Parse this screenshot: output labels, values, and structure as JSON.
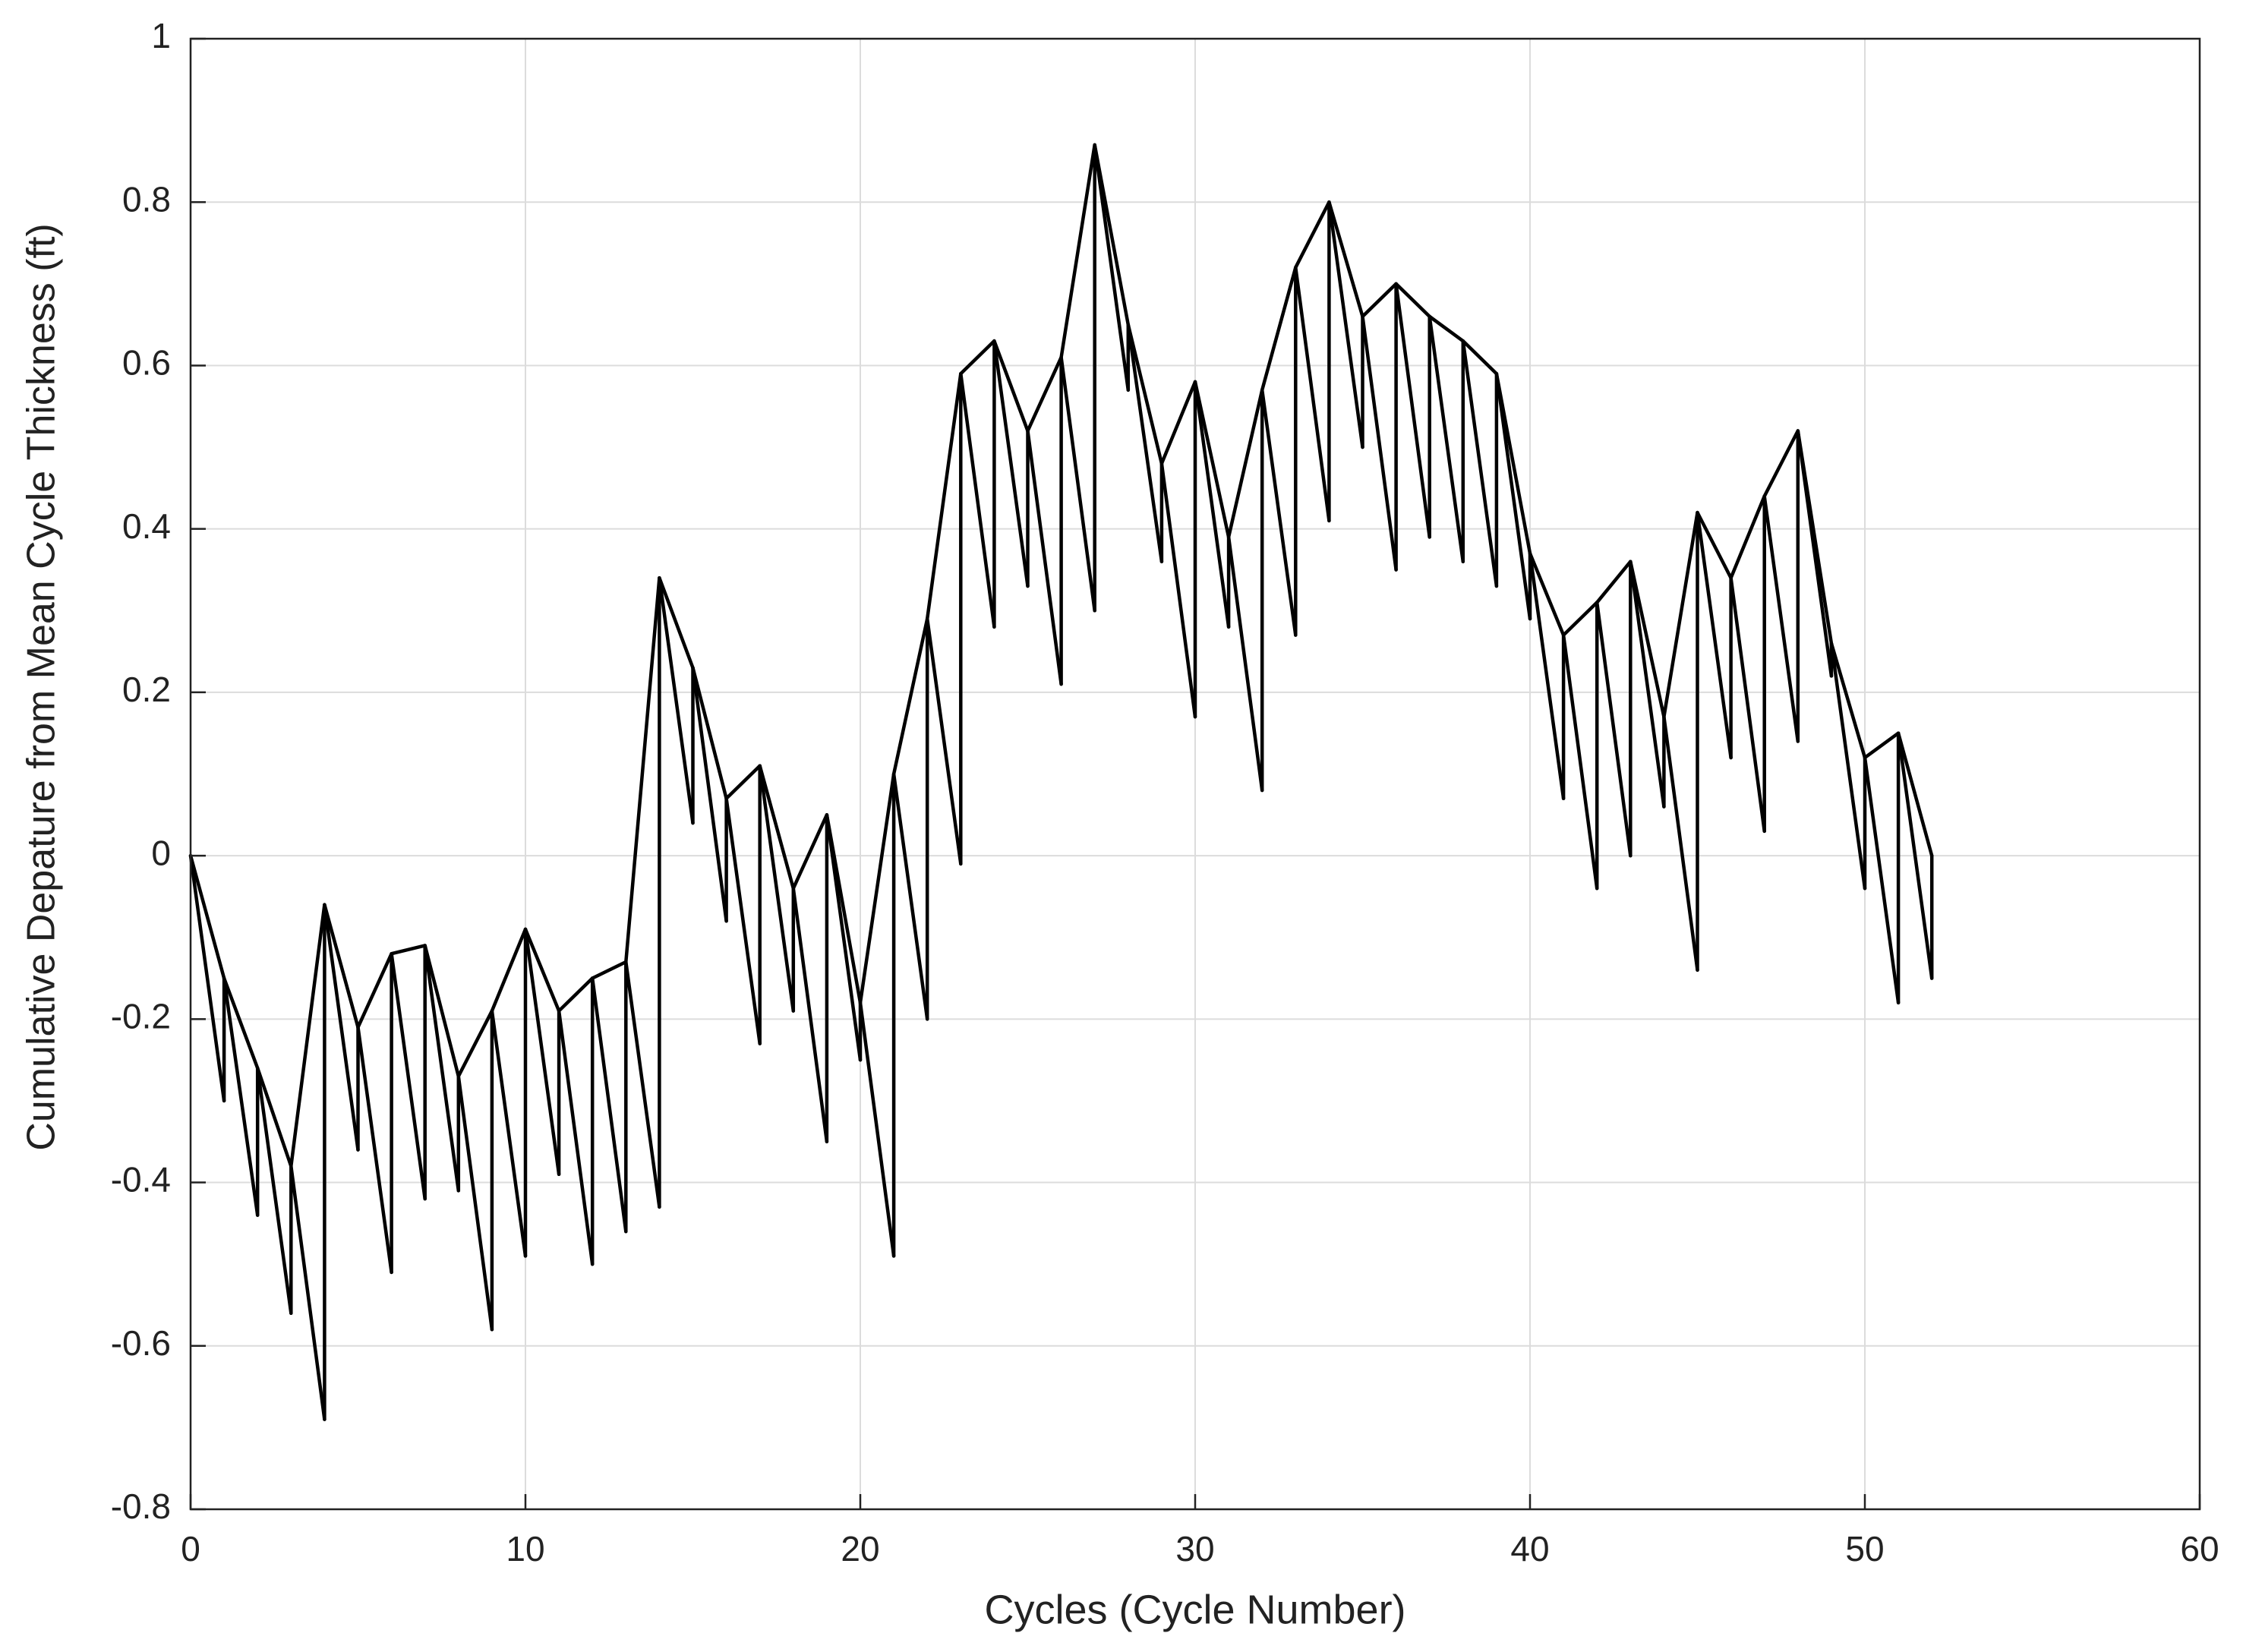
{
  "chart_data": {
    "type": "fischer",
    "xlabel": "Cycles (Cycle Number)",
    "ylabel": "Cumulative Depature from Mean Cycle Thickness (ft)",
    "x": [
      0,
      1,
      2,
      3,
      4,
      5,
      6,
      7,
      8,
      9,
      10,
      11,
      12,
      13,
      14,
      15,
      16,
      17,
      18,
      19,
      20,
      21,
      22,
      23,
      24,
      25,
      26,
      27,
      28,
      29,
      30,
      31,
      32,
      33,
      34,
      35,
      36,
      37,
      38,
      39,
      40,
      41,
      42,
      43,
      44,
      45,
      46,
      47,
      48,
      49,
      50,
      51,
      52
    ],
    "series": [
      {
        "color": "#000000",
        "values": [
          0,
          -0.15,
          -0.26,
          -0.38,
          -0.06,
          -0.21,
          -0.12,
          -0.11,
          -0.27,
          -0.19,
          -0.09,
          -0.19,
          -0.15,
          -0.13,
          0.34,
          0.23,
          0.07,
          0.11,
          -0.04,
          0.05,
          -0.18,
          0.1,
          0.29,
          0.59,
          0.63,
          0.52,
          0.61,
          0.87,
          0.65,
          0.48,
          0.58,
          0.39,
          0.57,
          0.72,
          0.8,
          0.66,
          0.7,
          0.66,
          0.63,
          0.59,
          0.37,
          0.27,
          0.31,
          0.36,
          0.17,
          0.42,
          0.34,
          0.44,
          0.52,
          0.26,
          0.12,
          0.15,
          0.0
        ]
      },
      {
        "color": "#000000",
        "values": [
          null,
          -0.3,
          -0.44,
          -0.56,
          -0.69,
          -0.36,
          -0.51,
          -0.42,
          -0.41,
          -0.58,
          -0.49,
          -0.39,
          -0.5,
          -0.46,
          -0.43,
          0.04,
          -0.08,
          -0.23,
          -0.19,
          -0.35,
          -0.25,
          -0.49,
          -0.2,
          -0.01,
          0.28,
          0.33,
          0.21,
          0.3,
          0.57,
          0.36,
          0.17,
          0.28,
          0.08,
          0.27,
          0.41,
          0.5,
          0.35,
          0.39,
          0.36,
          0.33,
          0.29,
          0.07,
          -0.04,
          0.0,
          0.06,
          -0.14,
          0.12,
          0.03,
          0.14,
          0.22,
          -0.04,
          -0.18,
          -0.15
        ]
      }
    ],
    "xlim": [
      0,
      60
    ],
    "xticks": [
      0,
      10,
      20,
      30,
      40,
      50,
      60
    ],
    "ylim": [
      -0.8,
      1
    ],
    "yticks": [
      -0.8,
      -0.6,
      -0.4,
      -0.2,
      0,
      0.2,
      0.4,
      0.6,
      0.8,
      1
    ],
    "grid": true
  }
}
